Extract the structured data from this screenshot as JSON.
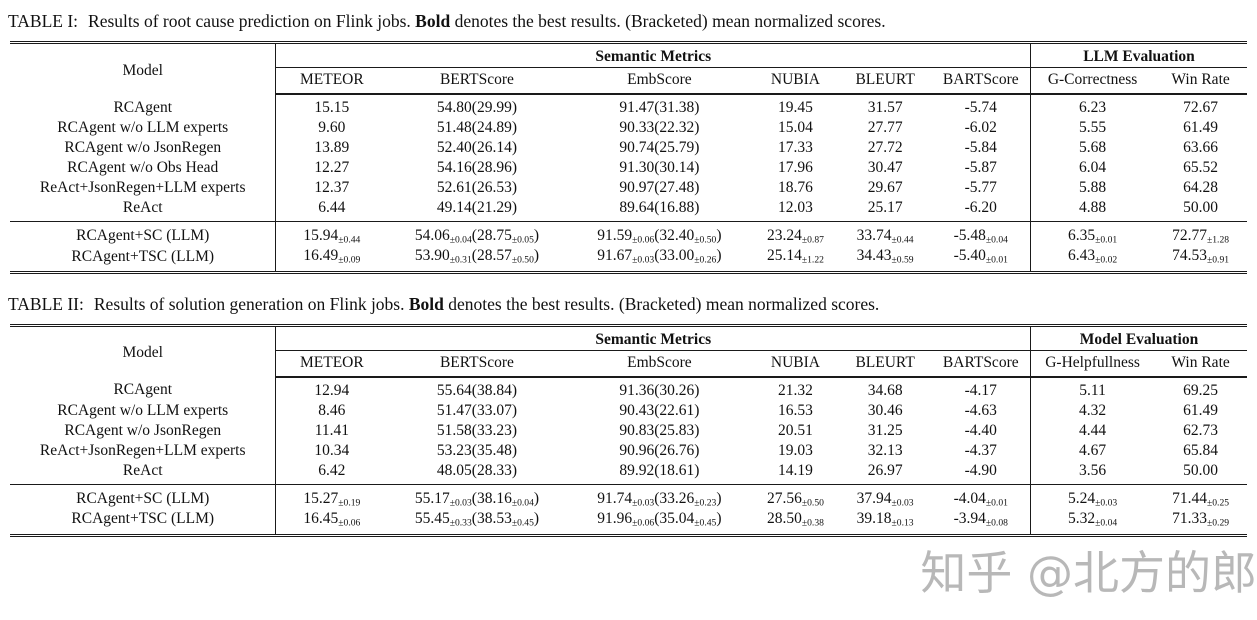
{
  "watermark": {
    "text": "知乎 @北方的郎",
    "color": "#7d7d7d"
  },
  "tables": [
    {
      "caption": {
        "label": "TABLE I:",
        "pre": "Results of root cause prediction on Flink jobs.",
        "bold_word": "Bold",
        "post": "denotes the best results. (Bracketed) mean normalized scores."
      },
      "model_header": "Model",
      "groups": [
        {
          "label": "Semantic Metrics",
          "span": 6
        },
        {
          "label": "LLM Evaluation",
          "span": 2
        }
      ],
      "columns": [
        "METEOR",
        "BERTScore",
        "EmbScore",
        "NUBIA",
        "BLEURT",
        "BARTScore",
        "G-Correctness",
        "Win Rate"
      ],
      "rows": [
        {
          "label": "RCAgent",
          "cells": [
            "15.15",
            "**54.80(29.99)",
            "91.47(31.38)",
            "19.45",
            "31.57",
            "-5.74",
            "6.23",
            "72.67"
          ]
        },
        {
          "label": "RCAgent w/o LLM experts",
          "cells": [
            "9.60",
            "51.48(24.89)",
            "90.33(22.32)",
            "15.04",
            "27.77",
            "-6.02",
            "5.55",
            "61.49"
          ]
        },
        {
          "label": "RCAgent w/o JsonRegen",
          "cells": [
            "13.89",
            "52.40(26.14)",
            "90.74(25.79)",
            "17.33",
            "27.72",
            "-5.84",
            "5.68",
            "63.66"
          ]
        },
        {
          "label": "RCAgent w/o Obs Head",
          "cells": [
            "12.27",
            "54.16(28.96)",
            "91.30(30.14)",
            "17.96",
            "30.47",
            "-5.87",
            "6.04",
            "65.52"
          ]
        },
        {
          "label": "ReAct+JsonRegen+LLM experts",
          "cells": [
            "12.37",
            "52.61(26.53)",
            "90.97(27.48)",
            "18.76",
            "29.67",
            "-5.77",
            "5.88",
            "64.28"
          ]
        },
        {
          "label": "ReAct",
          "cells": [
            "6.44",
            "49.14(21.29)",
            "89.64(16.88)",
            "12.03",
            "25.17",
            "-6.20",
            "4.88",
            "50.00"
          ]
        }
      ],
      "footer_rows": [
        {
          "label": "RCAgent+SC (LLM)",
          "cells": [
            "15.94~±0.44~",
            "54.06~±0.04~(28.75~±0.05~)",
            "91.59~±0.06~(32.40~±0.50~)",
            "23.24~±0.87~",
            "33.74~±0.44~",
            "-5.48~±0.04~",
            "6.35~±0.01~",
            "72.77~±1.28~"
          ]
        },
        {
          "label": "RCAgent+TSC (LLM)",
          "cells": [
            "**16.49~±0.09~",
            "53.90~±0.31~(28.57~±0.50~)",
            "**91.67~±0.03~(33.00~±0.26~)",
            "**25.14~±1.22~",
            "**34.43~±0.59~",
            "**-5.40~±0.01~",
            "**6.43~±0.02~",
            "**74.53~±0.91~"
          ]
        }
      ]
    },
    {
      "caption": {
        "label": "TABLE II:",
        "pre": "Results of solution generation on Flink jobs.",
        "bold_word": "Bold",
        "post": "denotes the best results. (Bracketed) mean normalized scores."
      },
      "model_header": "Model",
      "groups": [
        {
          "label": "Semantic Metrics",
          "span": 6
        },
        {
          "label": "Model Evaluation",
          "span": 2
        }
      ],
      "columns": [
        "METEOR",
        "BERTScore",
        "EmbScore",
        "NUBIA",
        "BLEURT",
        "BARTScore",
        "G-Helpfullness",
        "Win Rate"
      ],
      "rows": [
        {
          "label": "RCAgent",
          "cells": [
            "12.94",
            "**55.64(38.84)",
            "91.36(30.26)",
            "21.32",
            "34.68",
            "-4.17",
            "5.11",
            "69.25"
          ]
        },
        {
          "label": "RCAgent w/o LLM experts",
          "cells": [
            "8.46",
            "51.47(33.07)",
            "90.43(22.61)",
            "16.53",
            "30.46",
            "-4.63",
            "4.32",
            "61.49"
          ]
        },
        {
          "label": "RCAgent w/o JsonRegen",
          "cells": [
            "11.41",
            "51.58(33.23)",
            "90.83(25.83)",
            "20.51",
            "31.25",
            "-4.40",
            "4.44",
            "62.73"
          ]
        },
        {
          "label": "ReAct+JsonRegen+LLM experts",
          "cells": [
            "10.34",
            "53.23(35.48)",
            "90.96(26.76)",
            "19.03",
            "32.13",
            "-4.37",
            "4.67",
            "65.84"
          ]
        },
        {
          "label": "ReAct",
          "cells": [
            "6.42",
            "48.05(28.33)",
            "89.92(18.61)",
            "14.19",
            "26.97",
            "-4.90",
            "3.56",
            "50.00"
          ]
        }
      ],
      "footer_rows": [
        {
          "label": "RCAgent+SC (LLM)",
          "cells": [
            "15.27~±0.19~",
            "55.17~±0.03~(38.16~±0.04~)",
            "91.74~±0.03~(33.26~±0.23~)",
            "27.56~±0.50~",
            "37.94~±0.03~",
            "-4.04~±0.01~",
            "5.24~±0.03~",
            "**71.44~±0.25~"
          ]
        },
        {
          "label": "RCAgent+TSC (LLM)",
          "cells": [
            "**16.45~±0.06~",
            "55.45~±0.33~(38.53~±0.45~)",
            "**91.96~±0.06~(35.04~±0.45~)",
            "**28.50~±0.38~",
            "**39.18~±0.13~",
            "**-3.94~±0.08~",
            "**5.32~±0.04~",
            "71.33~±0.29~"
          ]
        }
      ]
    }
  ]
}
